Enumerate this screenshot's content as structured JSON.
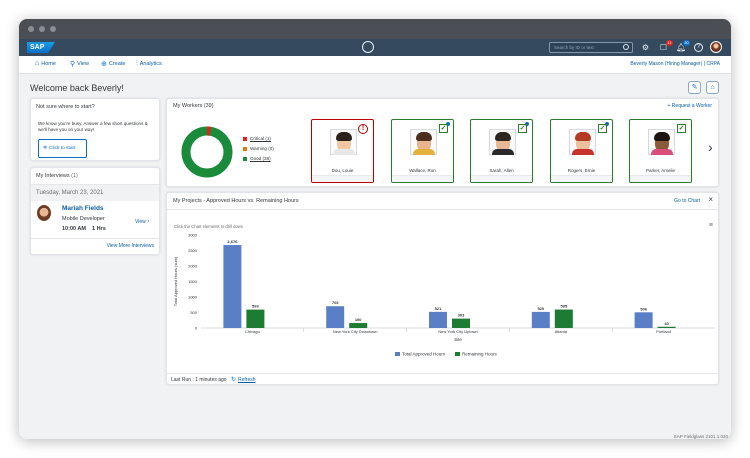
{
  "shell": {
    "logo": "SAP",
    "search_placeholder": "Search by ID or text",
    "notif_badge_1": "11",
    "notif_badge_2": "30"
  },
  "toolbar": {
    "items": [
      {
        "label": "Home",
        "icon": "home-icon"
      },
      {
        "label": "View",
        "icon": "view-icon"
      },
      {
        "label": "Create",
        "icon": "create-icon"
      },
      {
        "label": "Analytics",
        "icon": "analytics-icon"
      }
    ],
    "user": "Beverly Mason (Hiring Manager) | CRPA"
  },
  "welcome": "Welcome back Beverly!",
  "start_card": {
    "title": "Not sure where to start?",
    "text": "We know you're busy. Answer a few short questions & we'll have you on your way!",
    "button": "Click to start"
  },
  "interviews": {
    "title": "My Interviews",
    "count": "(1)",
    "date": "Tuesday, March 23, 2021",
    "name": "Mariah Fields",
    "role": "Mobile Developer",
    "time": "10:00 AM",
    "duration": "1 Hrs",
    "view": "View",
    "more": "View More Interviews"
  },
  "workers": {
    "title": "My Workers",
    "count": "(39)",
    "request": "Request a Worker",
    "legend": [
      {
        "label": "Critical (1)",
        "color": "#d9261c"
      },
      {
        "label": "Warning (0)",
        "color": "#e9730c"
      },
      {
        "label": "Good (38)",
        "color": "#1a8b3a"
      }
    ],
    "donut": {
      "critical": 1,
      "warning": 0,
      "good": 38
    },
    "cards": [
      {
        "name": "Dou, Louie",
        "status": "critical"
      },
      {
        "name": "Wallace, Ron",
        "status": "good"
      },
      {
        "name": "Sarah, Allen",
        "status": "good"
      },
      {
        "name": "Rogers, Ernie",
        "status": "good"
      },
      {
        "name": "Parker, Amelie",
        "status": "good"
      }
    ]
  },
  "projects": {
    "title": "My Projects - Approved Hours vs. Remaining Hours",
    "goto": "Go to Chart",
    "hint": "Click the Chart elements to drill down",
    "last_run_label": "Last Run : 1 minutes ago",
    "refresh": "Refresh"
  },
  "chart_data": {
    "type": "bar",
    "categories": [
      "Chicago",
      "New York City Downtown",
      "New York City Uptown",
      "Atlanta",
      "Portland"
    ],
    "series": [
      {
        "name": "Total Approved Hours",
        "color": "#5b7fc7",
        "values": [
          2676,
          703,
          521,
          520,
          506
        ]
      },
      {
        "name": "Remaining Hours",
        "color": "#1e7b32",
        "values": [
          593,
          160,
          303,
          595,
          40
        ]
      }
    ],
    "xlabel": "Site",
    "ylabel": "Total Approved Hours (sum)",
    "ylim": [
      0,
      3000
    ],
    "yticks": [
      0,
      500,
      1000,
      1500,
      2000,
      2500,
      3000
    ],
    "data_labels": [
      [
        "2,676",
        "593"
      ],
      [
        "703",
        "160"
      ],
      [
        "521",
        "303"
      ],
      [
        "520",
        "595"
      ],
      [
        "506",
        "40"
      ]
    ],
    "legend_position": "bottom"
  },
  "footer": "SAP Fieldglass 2101.1.020"
}
